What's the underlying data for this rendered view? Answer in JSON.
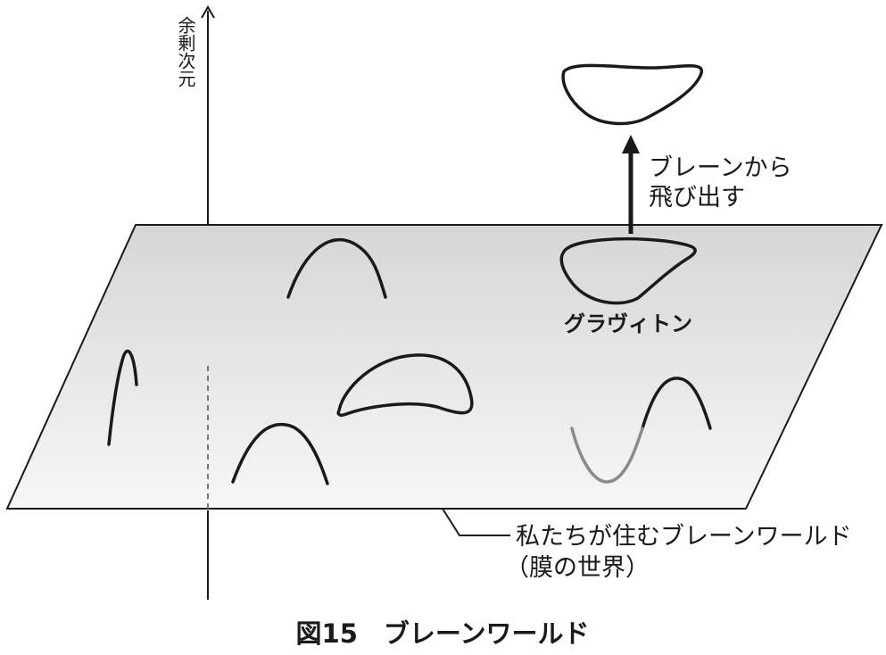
{
  "axis": {
    "label": "余剰次元"
  },
  "annotations": {
    "escape_line1": "ブレーンから",
    "escape_line2": "飛び出す",
    "graviton": "グラヴィトン",
    "brane_line1": "私たちが住むブレーンワールド",
    "brane_line2": "（膜の世界）"
  },
  "caption": "図15　ブレーンワールド",
  "colors": {
    "brane_fill_top": "#d6d6d6",
    "brane_fill_bottom": "#f7f7f7",
    "stroke": "#1a1a1a",
    "faded_stroke": "#8a8a8a"
  }
}
